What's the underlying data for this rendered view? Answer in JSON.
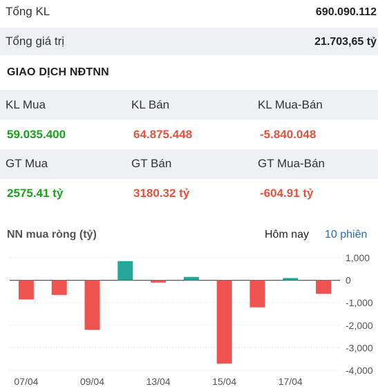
{
  "summary": {
    "total_volume_label": "Tổng KL",
    "total_volume_value": "690.090.112",
    "total_value_label": "Tổng giá trị",
    "total_value_value": "21.703,65 tỷ"
  },
  "foreign": {
    "title": "GIAO DỊCH NĐTNN",
    "headers_volume": [
      "KL Mua",
      "KL Bán",
      "KL Mua-Bán"
    ],
    "values_volume": [
      "59.035.400",
      "64.875.448",
      "-5.840.048"
    ],
    "headers_value": [
      "GT Mua",
      "GT Bán",
      "GT Mua-Bán"
    ],
    "values_value": [
      "2575.41 tỷ",
      "3180.32 tỷ",
      "-604.91 tỷ"
    ]
  },
  "chart_header": {
    "title": "NN mua ròng (tỷ)",
    "tab_today": "Hôm nay",
    "tab_10": "10 phiên"
  },
  "colors": {
    "positive": "#26a69a",
    "negative": "#ef5350",
    "green_text": "#18a31a",
    "red_text": "#e5533f",
    "link": "#2a6db5"
  },
  "chart_data": {
    "type": "bar",
    "title": "NN mua ròng (tỷ)",
    "values": [
      -850,
      -650,
      -2200,
      850,
      -100,
      150,
      -3700,
      -1200,
      100,
      -600
    ],
    "x_tick_labels": [
      "07/04",
      "09/04",
      "13/04",
      "15/04",
      "17/04"
    ],
    "y_ticks": [
      1000,
      0,
      -1000,
      -2000,
      -3000,
      -4000
    ],
    "y_tick_labels": [
      "1,000",
      "0",
      "-1,000",
      "-2,000",
      "-3,000",
      "-4,000"
    ],
    "ylim": [
      -4000,
      1000
    ],
    "grid": "horizontal-dotted",
    "y_axis_position": "right"
  }
}
